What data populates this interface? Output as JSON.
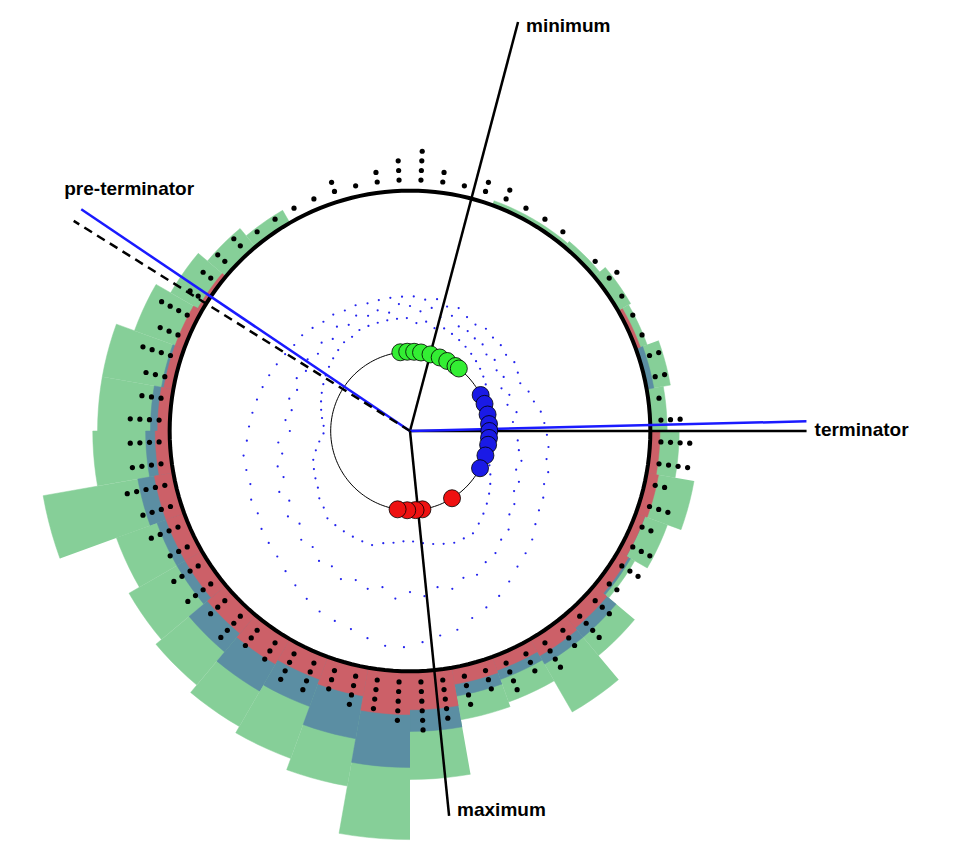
{
  "chart_data": {
    "type": "circular",
    "tick_labels": false,
    "circle_radii": [
      1,
      0.33
    ],
    "lines": [
      {
        "label": "minimum",
        "angle": 14.8,
        "length": 1.76,
        "color": "#000000",
        "line_style": "solid"
      },
      {
        "label": "terminator",
        "angle": 90,
        "length": 1.65,
        "color": "#000000",
        "line_style": "solid"
      },
      {
        "angle": 88.6,
        "length": 1.65,
        "color": "#1a1aff",
        "line_style": "solid"
      },
      {
        "label": "maximum",
        "angle": 174.2,
        "length": 1.61,
        "color": "#000000",
        "line_style": "solid"
      },
      {
        "label": "pre-terminator",
        "angle": 304,
        "length": 1.65,
        "color": "#1a1aff",
        "line_style": "solid"
      },
      {
        "angle": 302,
        "length": 1.65,
        "color": "#000000",
        "line_style": "dashed"
      }
    ],
    "rose": {
      "bins": [
        0,
        10,
        20,
        30,
        40,
        50,
        60,
        70,
        80,
        90,
        100,
        110,
        120,
        130,
        140,
        150,
        160,
        170,
        180,
        190,
        200,
        210,
        220,
        230,
        240,
        250,
        260,
        270,
        280,
        290,
        300,
        310,
        320,
        330,
        340,
        350,
        360
      ],
      "series": [
        {
          "color": "#86cf98",
          "values": [
            0,
            0,
            0.02,
            0.02,
            0.03,
            0.06,
            0.05,
            0.1,
            0.07,
            0.12,
            0.2,
            0.14,
            0.08,
            0.22,
            0.35,
            0.2,
            0.22,
            0.45,
            0.7,
            0.5,
            0.45,
            0.42,
            0.38,
            0.35,
            0.3,
            0.55,
            0.32,
            0.3,
            0.3,
            0.22,
            0.15,
            0.1,
            0.06,
            0,
            0,
            0
          ]
        },
        {
          "color": "#5b8ea3",
          "values": [
            0,
            0,
            0,
            0,
            0,
            0,
            0,
            0.03,
            0,
            0.03,
            0.04,
            0.04,
            0.06,
            0.12,
            0.12,
            0.1,
            0.12,
            0.25,
            0.4,
            0.3,
            0.22,
            0.25,
            0.2,
            0.12,
            0.12,
            0.15,
            0.1,
            0.08,
            0.05,
            0.03,
            0,
            0,
            0,
            0,
            0,
            0
          ]
        },
        {
          "color": "#cc6068",
          "values": [
            0,
            0,
            0,
            0,
            0,
            0,
            0.02,
            0,
            0,
            0.04,
            0.05,
            0.04,
            0.05,
            0.07,
            0.08,
            0.06,
            0.07,
            0.16,
            0.18,
            0.12,
            0.1,
            0.12,
            0.1,
            0.08,
            0.08,
            0.08,
            0.06,
            0.05,
            0.04,
            0.04,
            0.02,
            0,
            0,
            0,
            0,
            0
          ]
        }
      ]
    },
    "dots": {
      "color": "#000000",
      "bins": [
        0,
        5,
        10,
        15,
        20,
        25,
        30,
        35,
        40,
        45,
        50,
        55,
        60,
        65,
        70,
        75,
        80,
        85,
        90,
        95,
        100,
        105,
        110,
        115,
        120,
        125,
        130,
        135,
        140,
        145,
        150,
        155,
        160,
        165,
        170,
        175,
        180,
        185,
        190,
        195,
        200,
        205,
        210,
        215,
        220,
        225,
        230,
        235,
        240,
        245,
        250,
        255,
        260,
        265,
        270,
        275,
        280,
        285,
        290,
        295,
        300,
        305,
        310,
        315,
        320,
        325,
        330,
        335,
        340,
        345,
        350,
        355,
        360
      ],
      "counts": [
        4,
        2,
        1,
        2,
        2,
        1,
        1,
        1,
        0,
        1,
        2,
        1,
        1,
        1,
        2,
        2,
        1,
        3,
        4,
        4,
        2,
        3,
        2,
        3,
        3,
        2,
        3,
        4,
        3,
        4,
        3,
        4,
        3,
        4,
        5,
        6,
        5,
        4,
        4,
        3,
        4,
        4,
        3,
        3,
        4,
        3,
        4,
        4,
        3,
        4,
        4,
        5,
        4,
        4,
        4,
        3,
        3,
        4,
        3,
        4,
        2,
        2,
        2,
        2,
        1,
        1,
        1,
        1,
        2,
        1,
        2,
        3
      ]
    },
    "noise": {
      "color": "#2222ee",
      "angles": [
        0,
        5,
        10,
        15,
        20,
        25,
        30,
        35,
        40,
        45,
        50,
        55,
        60,
        65,
        70,
        75,
        80,
        85,
        90,
        95,
        100,
        105,
        110,
        115,
        120,
        125,
        130,
        135,
        140,
        145,
        150,
        155,
        160,
        165,
        170,
        175,
        180,
        185,
        190,
        195,
        200,
        205,
        210,
        215,
        220,
        225,
        230,
        235,
        240,
        245,
        250,
        255,
        260,
        265,
        270,
        275,
        280,
        285,
        290,
        295,
        300,
        305,
        310,
        315,
        320,
        325,
        330,
        335,
        340,
        345,
        350,
        355
      ],
      "radii": [
        [
          0.47,
          0.52,
          0.56
        ],
        [
          0.45,
          0.5,
          0.55
        ],
        [
          0.46,
          0.52,
          0.56
        ],
        [
          0.44,
          0.49,
          0.54
        ],
        [
          0.45,
          0.51,
          0.55
        ],
        [
          0.44,
          0.48,
          0.53
        ],
        [
          0.43,
          0.48,
          0.52
        ],
        [
          0.42,
          0.47,
          0.53
        ],
        [
          0.41,
          0.47,
          0.52
        ],
        [
          0.4,
          0.45,
          0.52
        ],
        [
          0.39,
          0.46,
          0.51
        ],
        [
          0.38,
          0.44,
          0.52
        ],
        [
          0.37,
          0.45,
          0.51
        ],
        [
          0.36,
          0.42,
          0.5
        ],
        [
          0.34,
          0.44,
          0.52
        ],
        [
          0.33,
          0.42,
          0.53
        ],
        [
          0.32,
          0.45,
          0.55
        ],
        [
          0.31,
          0.43,
          0.56
        ],
        [
          0.3,
          0.44,
          0.57
        ],
        [
          0.31,
          0.45,
          0.58
        ],
        [
          0.32,
          0.46,
          0.58
        ],
        [
          0.33,
          0.48,
          0.6
        ],
        [
          0.35,
          0.47,
          0.6
        ],
        [
          0.36,
          0.5,
          0.62
        ],
        [
          0.38,
          0.5,
          0.63
        ],
        [
          0.4,
          0.53,
          0.65
        ],
        [
          0.42,
          0.54,
          0.68
        ],
        [
          0.44,
          0.58,
          0.7
        ],
        [
          0.46,
          0.59,
          0.72
        ],
        [
          0.48,
          0.62,
          0.75
        ],
        [
          0.5,
          0.63,
          0.78
        ],
        [
          0.5,
          0.66,
          0.8
        ],
        [
          0.5,
          0.65,
          0.82
        ],
        [
          0.49,
          0.68,
          0.85
        ],
        [
          0.48,
          0.66,
          0.86
        ],
        [
          0.47,
          0.69,
          0.88
        ],
        [
          0.46,
          0.67,
          0.9
        ],
        [
          0.46,
          0.7,
          0.9
        ],
        [
          0.47,
          0.66,
          0.88
        ],
        [
          0.48,
          0.68,
          0.86
        ],
        [
          0.5,
          0.66,
          0.85
        ],
        [
          0.5,
          0.68,
          0.84
        ],
        [
          0.5,
          0.65,
          0.82
        ],
        [
          0.5,
          0.66,
          0.8
        ],
        [
          0.5,
          0.63,
          0.78
        ],
        [
          0.5,
          0.64,
          0.76
        ],
        [
          0.48,
          0.6,
          0.75
        ],
        [
          0.47,
          0.62,
          0.74
        ],
        [
          0.45,
          0.58,
          0.72
        ],
        [
          0.44,
          0.6,
          0.72
        ],
        [
          0.43,
          0.56,
          0.7
        ],
        [
          0.42,
          0.57,
          0.7
        ],
        [
          0.4,
          0.54,
          0.7
        ],
        [
          0.38,
          0.55,
          0.68
        ],
        [
          0.36,
          0.5,
          0.67
        ],
        [
          0.36,
          0.52,
          0.66
        ],
        [
          0.37,
          0.5,
          0.65
        ],
        [
          0.38,
          0.52,
          0.64
        ],
        [
          0.39,
          0.5,
          0.63
        ],
        [
          0.4,
          0.52,
          0.62
        ],
        [
          0.41,
          0.5,
          0.61
        ],
        [
          0.42,
          0.52,
          0.6
        ],
        [
          0.43,
          0.5,
          0.6
        ],
        [
          0.44,
          0.52,
          0.59
        ],
        [
          0.45,
          0.5,
          0.58
        ],
        [
          0.46,
          0.53,
          0.58
        ],
        [
          0.46,
          0.51,
          0.57
        ],
        [
          0.47,
          0.53,
          0.57
        ],
        [
          0.47,
          0.51,
          0.56
        ],
        [
          0.47,
          0.52,
          0.56
        ],
        [
          0.47,
          0.5,
          0.56
        ],
        [
          0.47,
          0.53,
          0.56
        ]
      ]
    },
    "groups": [
      {
        "color": "#33ee33",
        "angles": [
          353,
          358,
          3,
          8,
          15,
          22,
          28,
          35,
          38
        ]
      },
      {
        "color": "#1a1ae6",
        "angles": [
          63,
          70,
          78,
          85,
          90,
          95,
          100,
          108,
          118
        ]
      },
      {
        "color": "#ee1111",
        "angles": [
          148,
          171,
          176,
          182,
          189
        ]
      }
    ]
  }
}
